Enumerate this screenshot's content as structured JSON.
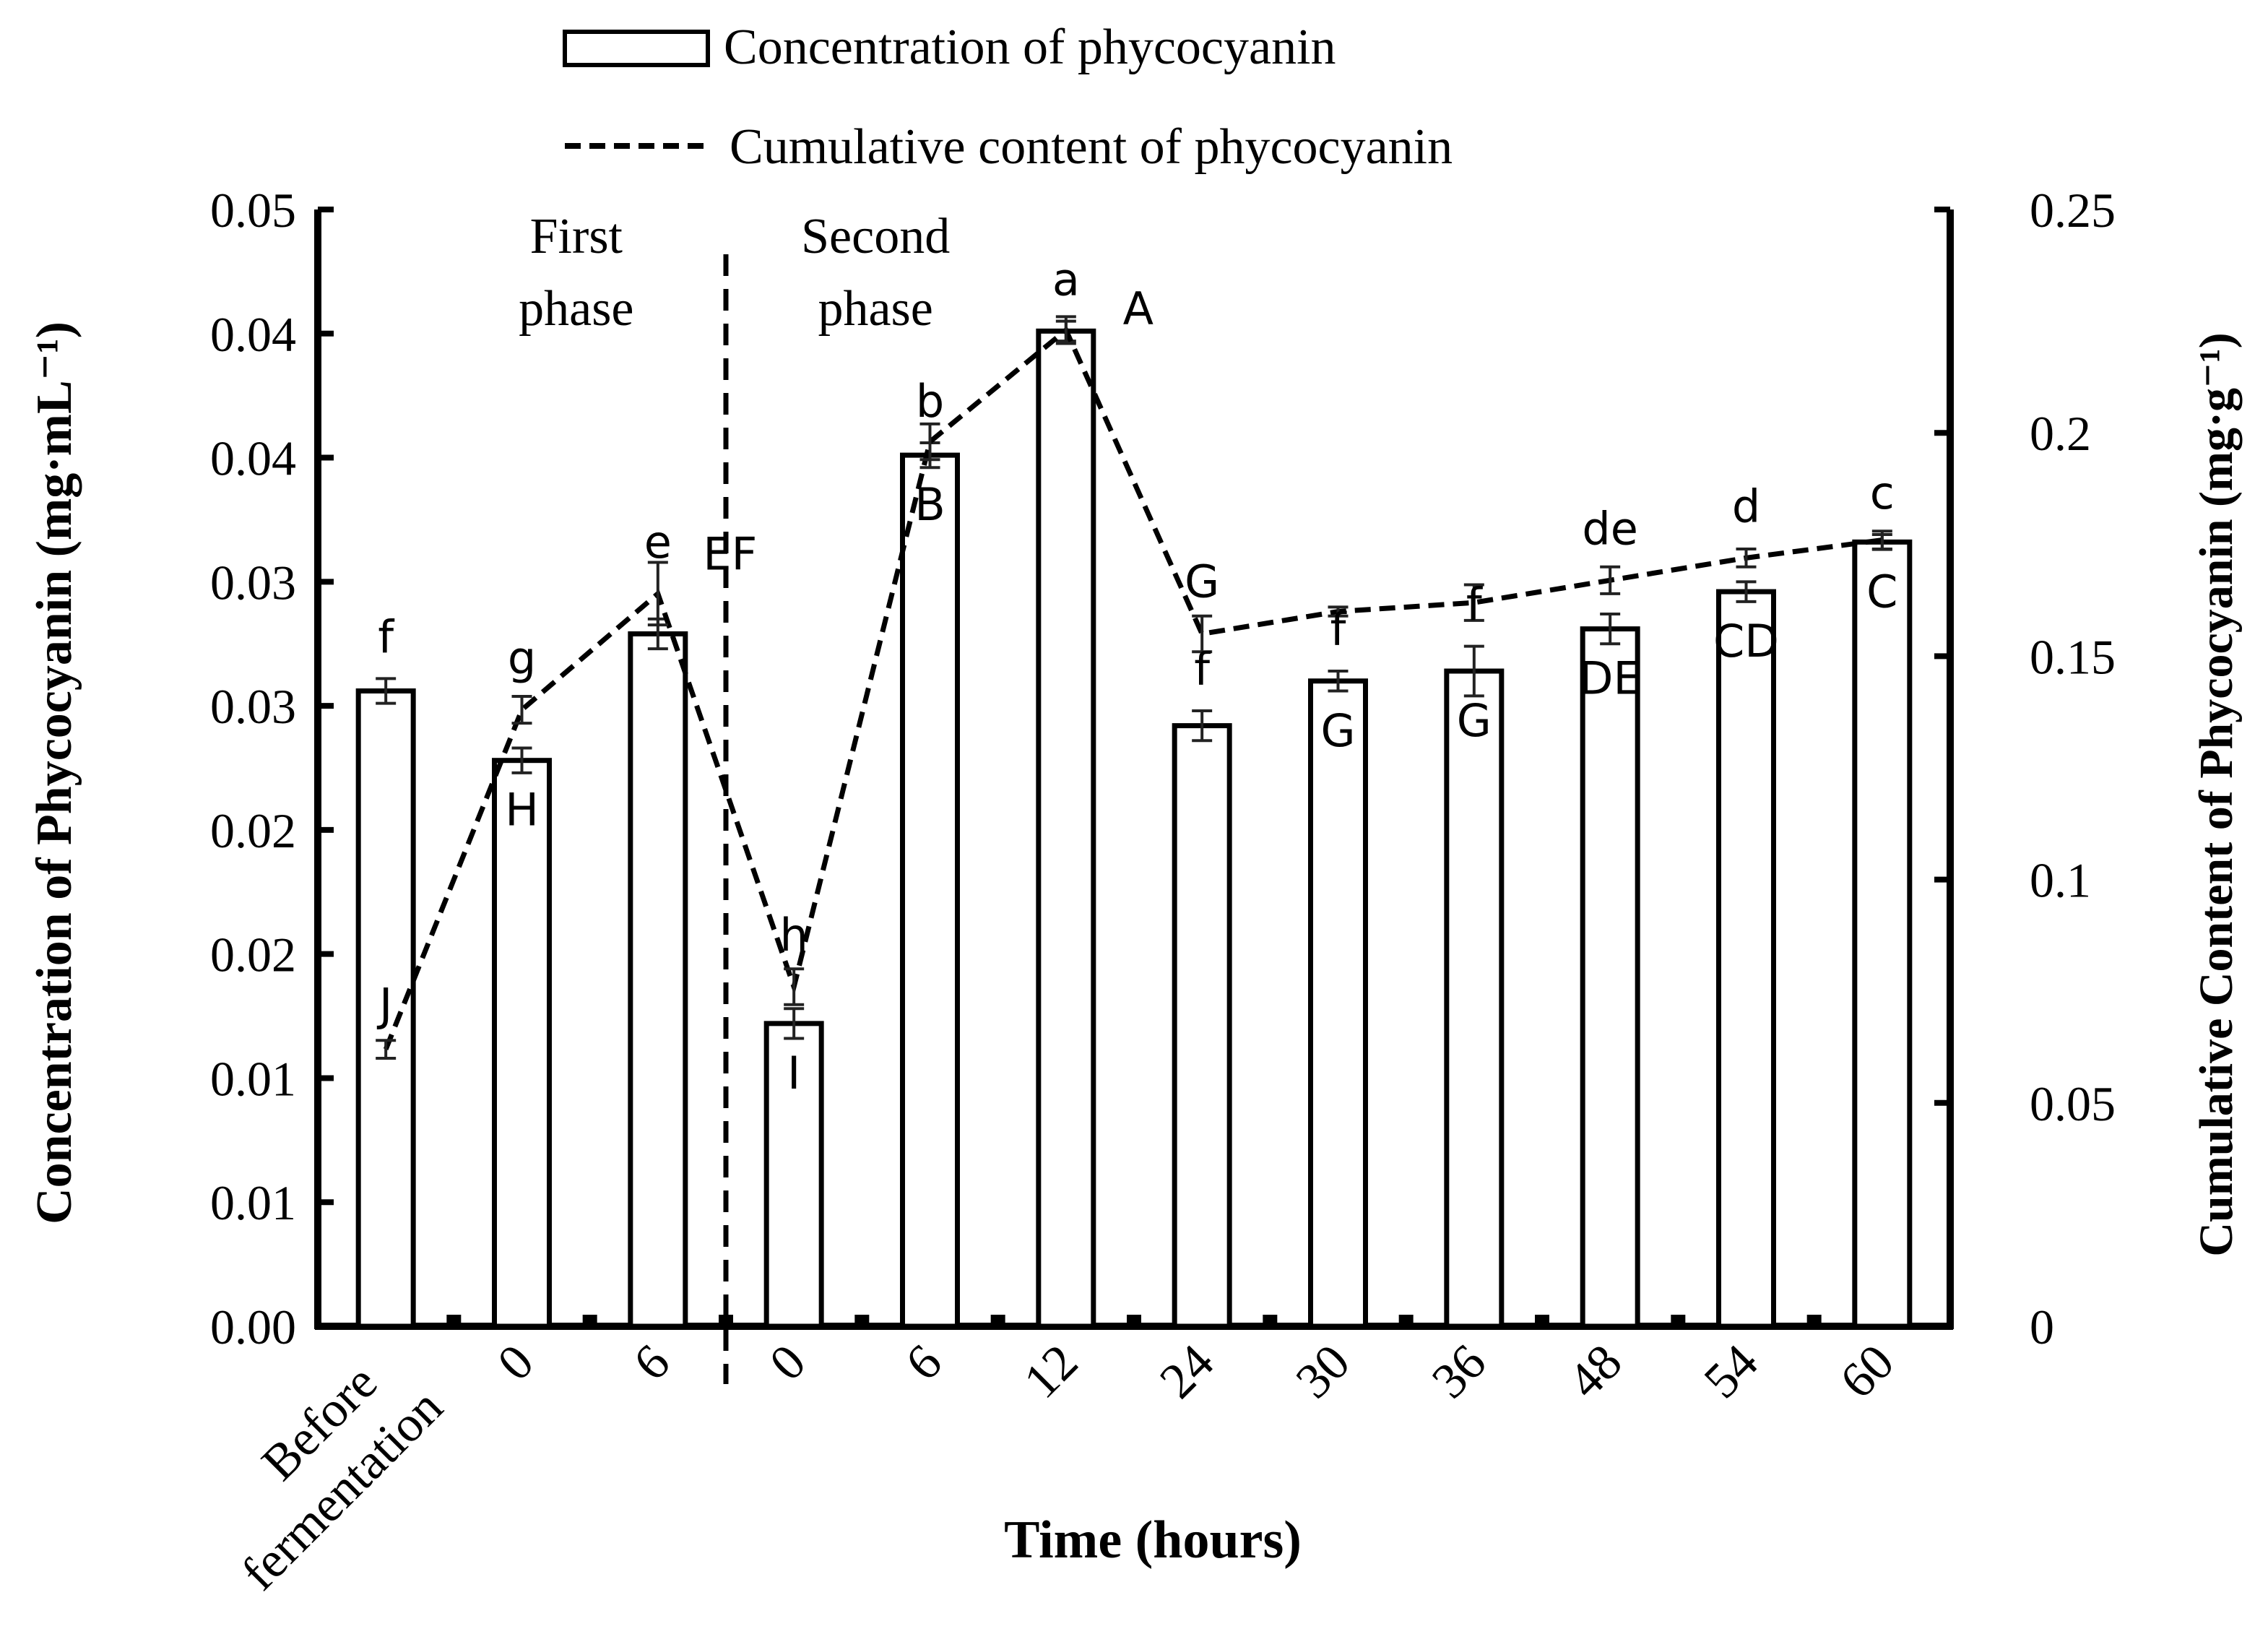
{
  "chart_data": {
    "type": "bar",
    "categories": [
      "Before\nfermentation",
      "0",
      "6",
      "0",
      "6",
      "12",
      "24",
      "30",
      "36",
      "48",
      "54",
      "60"
    ],
    "xlabel": "Time (hours)",
    "ylabel_left": "Concentration of Phycocyanin (mg·mL⁻¹)",
    "ylabel_right": "Cumulative Content of Phycocyanin (mg·g⁻¹)",
    "ylim_left": [
      0,
      0.045
    ],
    "ylim_right": [
      0,
      0.25
    ],
    "left_tick_labels": [
      "0.00",
      "0.01",
      "0.01",
      "0.02",
      "0.02",
      "0.03",
      "0.03",
      "0.04",
      "0.04",
      "0.05"
    ],
    "right_tick_labels": [
      "0",
      "0.05",
      "0.1",
      "0.15",
      "0.2",
      "0.25"
    ],
    "phase_labels": [
      {
        "text": "First\nphase"
      },
      {
        "text": "Second\nphase"
      }
    ],
    "legend": {
      "bar_label": "Concentration of phycocyanin",
      "line_label": "Cumulative content of phycocyanin"
    },
    "series": [
      {
        "name": "Concentration of phycocyanin",
        "type": "bar",
        "axis": "left",
        "values": [
          0.0256,
          0.0228,
          0.0279,
          0.0122,
          0.0351,
          0.0401,
          0.0242,
          0.026,
          0.0264,
          0.0281,
          0.0296,
          0.0316
        ],
        "errors": [
          0.0005,
          0.0005,
          0.0006,
          0.0006,
          0.0005,
          0.0004,
          0.0006,
          0.0004,
          0.001,
          0.0006,
          0.0004,
          0.0003
        ],
        "letters": [
          "f",
          "g",
          "e",
          "h",
          "b",
          "a",
          "f",
          "f",
          "f",
          "de",
          "d",
          "c"
        ]
      },
      {
        "name": "Cumulative content of phycocyanin",
        "type": "line",
        "axis": "right",
        "values": [
          0.062,
          0.138,
          0.164,
          0.076,
          0.198,
          0.223,
          0.155,
          0.16,
          0.162,
          0.167,
          0.172,
          0.176
        ],
        "errors": [
          0.002,
          0.003,
          0.007,
          0.004,
          0.004,
          0.003,
          0.004,
          0.001,
          0.004,
          0.003,
          0.002,
          0.002
        ],
        "letters": [
          "J",
          "H",
          "EF",
          "I",
          "B",
          "A",
          "G",
          "G",
          "G",
          "DE",
          "CD",
          "C"
        ]
      }
    ]
  }
}
